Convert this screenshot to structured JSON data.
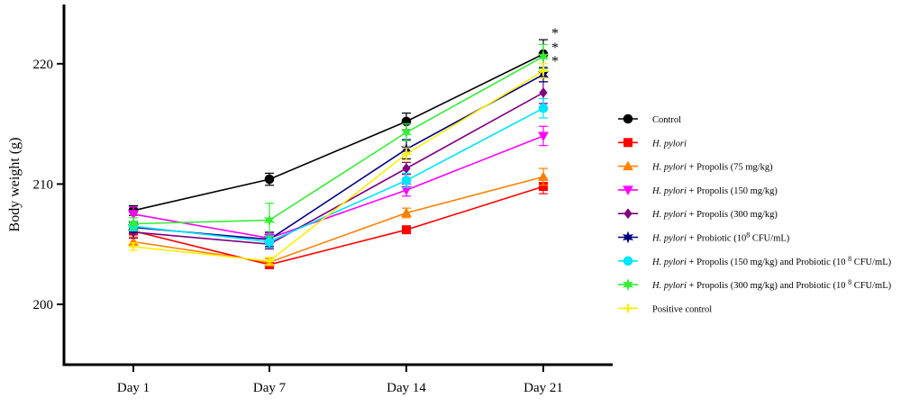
{
  "chart_data": {
    "type": "line",
    "ylabel": "Body weight (g)",
    "xlabel": "",
    "categories": [
      "Day 1",
      "Day 7",
      "Day 14",
      "Day 21"
    ],
    "ylim": [
      195,
      225
    ],
    "yticks": [
      200,
      210,
      220
    ],
    "grid": false,
    "legend_position": "right",
    "significance": [
      "*",
      "*",
      "*"
    ],
    "series": [
      {
        "name": "Control",
        "name_italic": "",
        "name_rest": "Control",
        "color": "#000000",
        "marker": "circle",
        "values": [
          207.8,
          210.4,
          215.2,
          220.8
        ],
        "errors": [
          0.4,
          0.5,
          0.7,
          1.2
        ]
      },
      {
        "name": "H. pylori",
        "name_italic": "H. pylori",
        "name_rest": "",
        "color": "#ff0000",
        "marker": "square",
        "values": [
          206.1,
          203.3,
          206.2,
          209.8
        ],
        "errors": [
          0.5,
          0.3,
          0.3,
          0.6
        ]
      },
      {
        "name": "H. pylori + Propolis (75 mg/kg)",
        "name_italic": "H. pylori",
        "name_rest": " + Propolis (75 mg/kg)",
        "color": "#ff7f00",
        "marker": "triangle-up",
        "values": [
          205.2,
          203.5,
          207.6,
          210.6
        ],
        "errors": [
          0.4,
          0.3,
          0.4,
          0.7
        ]
      },
      {
        "name": "H. pylori + Propolis (150 mg/kg)",
        "name_italic": "H. pylori",
        "name_rest": " + Propolis (150 mg/kg)",
        "color": "#ff00ff",
        "marker": "triangle-down",
        "values": [
          207.5,
          205.5,
          209.5,
          214.0
        ],
        "errors": [
          0.6,
          0.4,
          0.5,
          0.8
        ]
      },
      {
        "name": "H. pylori + Propolis (300 mg/kg)",
        "name_italic": "H. pylori",
        "name_rest": " + Propolis (300 mg/kg)",
        "color": "#800080",
        "marker": "diamond",
        "values": [
          206.0,
          205.0,
          211.3,
          217.6
        ],
        "errors": [
          0.5,
          0.4,
          0.5,
          0.9
        ]
      },
      {
        "name": "H. pylori + Probiotic (10 8 CFU/mL)",
        "name_italic": "H. pylori",
        "name_rest": " + Probiotic (10",
        "name_sup": "8",
        "name_tail": " CFU/mL)",
        "color": "#000080",
        "marker": "star",
        "values": [
          206.4,
          205.4,
          212.9,
          219.1
        ],
        "errors": [
          0.4,
          0.6,
          0.8,
          0.6
        ]
      },
      {
        "name": "H. pylori + Propolis (150 mg/kg) and Probiotic (10 8 CFU/mL)",
        "name_italic": "H. pylori",
        "name_rest": " + Propolis (150 mg/kg) and Probiotic (10 ",
        "name_sup": "8",
        "name_tail": " CFU/mL)",
        "color": "#00e5ff",
        "marker": "circle",
        "values": [
          206.5,
          205.2,
          210.3,
          216.3
        ],
        "errors": [
          0.4,
          0.5,
          0.6,
          0.8
        ]
      },
      {
        "name": "H. pylori + Propolis (300 mg/kg) and Probiotic (10 8 CFU/mL)",
        "name_italic": "H. pylori",
        "name_rest": " + Propolis (300 mg/kg) and Probiotic (10 ",
        "name_sup": "8",
        "name_tail": " CFU/mL)",
        "color": "#33ee33",
        "marker": "star",
        "values": [
          206.7,
          207.0,
          214.3,
          220.6
        ],
        "errors": [
          0.5,
          1.4,
          0.7,
          1.0
        ]
      },
      {
        "name": "Positive control",
        "name_italic": "",
        "name_rest": "Positive control",
        "color": "#ffee00",
        "marker": "plus",
        "values": [
          204.8,
          203.6,
          212.5,
          219.4
        ],
        "errors": [
          0.3,
          0.3,
          0.5,
          0.6
        ]
      }
    ]
  }
}
